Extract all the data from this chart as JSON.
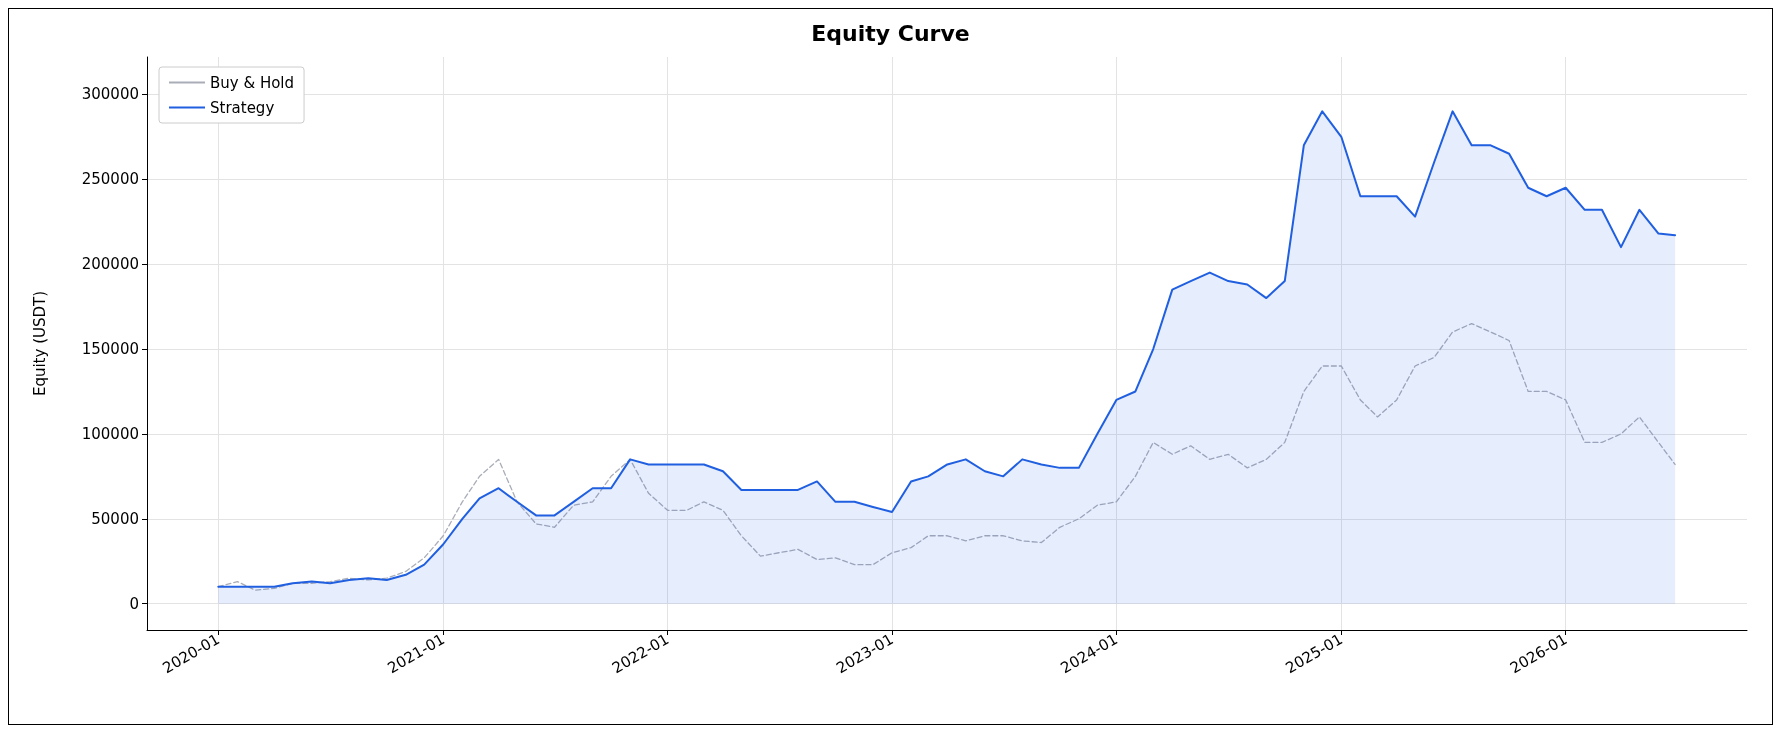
{
  "chart_data": {
    "type": "line",
    "title": "Equity Curve",
    "ylabel": "Equity (USDT)",
    "xlim": [
      "2019-09-07",
      "2026-10-23"
    ],
    "xticks": [
      "2020-01",
      "2021-01",
      "2022-01",
      "2023-01",
      "2024-01",
      "2025-01",
      "2026-01"
    ],
    "ylim": [
      -15500,
      322000
    ],
    "yticks": [
      0,
      50000,
      100000,
      150000,
      200000,
      250000,
      300000
    ],
    "grid": true,
    "legend": "top left",
    "x": [
      "2020-01",
      "2020-02",
      "2020-03",
      "2020-04",
      "2020-05",
      "2020-06",
      "2020-07",
      "2020-08",
      "2020-09",
      "2020-10",
      "2020-11",
      "2020-12",
      "2021-01",
      "2021-02",
      "2021-03",
      "2021-04",
      "2021-05",
      "2021-06",
      "2021-07",
      "2021-08",
      "2021-09",
      "2021-10",
      "2021-11",
      "2021-12",
      "2022-01",
      "2022-02",
      "2022-03",
      "2022-04",
      "2022-05",
      "2022-06",
      "2022-07",
      "2022-08",
      "2022-09",
      "2022-10",
      "2022-11",
      "2022-12",
      "2023-01",
      "2023-02",
      "2023-03",
      "2023-04",
      "2023-05",
      "2023-06",
      "2023-07",
      "2023-08",
      "2023-09",
      "2023-10",
      "2023-11",
      "2023-12",
      "2024-01",
      "2024-02",
      "2024-03",
      "2024-04",
      "2024-05",
      "2024-06",
      "2024-07",
      "2024-08",
      "2024-09",
      "2024-10",
      "2024-11",
      "2024-12",
      "2025-01",
      "2025-02",
      "2025-03",
      "2025-04",
      "2025-05",
      "2025-06",
      "2025-07",
      "2025-08",
      "2025-09",
      "2025-10",
      "2025-11",
      "2025-12",
      "2026-01",
      "2026-02",
      "2026-03",
      "2026-04",
      "2026-05",
      "2026-06",
      "2026-06-28"
    ],
    "series": [
      {
        "name": "Buy & Hold",
        "color": "#a9adb8",
        "line_style": "dashed",
        "values": [
          10000,
          13000,
          8000,
          9000,
          12000,
          12000,
          13000,
          15000,
          14000,
          15000,
          19000,
          27000,
          40000,
          60000,
          75000,
          85000,
          60000,
          47000,
          45000,
          58000,
          60000,
          75000,
          85000,
          65000,
          55000,
          55000,
          60000,
          55000,
          40000,
          28000,
          30000,
          32000,
          26000,
          27000,
          23000,
          23000,
          30000,
          33000,
          40000,
          40000,
          37000,
          40000,
          40000,
          37000,
          36000,
          45000,
          50000,
          58000,
          60000,
          75000,
          95000,
          88000,
          93000,
          85000,
          88000,
          80000,
          85000,
          95000,
          125000,
          140000,
          140000,
          120000,
          110000,
          120000,
          140000,
          145000,
          160000,
          165000,
          160000,
          155000,
          125000,
          125000,
          120000,
          95000,
          95000,
          100000,
          110000,
          95000,
          82000
        ]
      },
      {
        "name": "Strategy",
        "type": "area",
        "color": "#1f5fe0",
        "line_style": "solid",
        "values": [
          10000,
          10000,
          10000,
          10000,
          12000,
          13000,
          12000,
          14000,
          15000,
          14000,
          17000,
          23000,
          35000,
          50000,
          62000,
          68000,
          60000,
          52000,
          52000,
          60000,
          68000,
          68000,
          85000,
          82000,
          82000,
          82000,
          82000,
          78000,
          67000,
          67000,
          67000,
          67000,
          72000,
          60000,
          60000,
          57000,
          54000,
          72000,
          75000,
          82000,
          85000,
          78000,
          75000,
          85000,
          82000,
          80000,
          80000,
          100000,
          120000,
          125000,
          150000,
          185000,
          190000,
          195000,
          190000,
          188000,
          180000,
          190000,
          270000,
          290000,
          275000,
          240000,
          240000,
          240000,
          228000,
          260000,
          290000,
          270000,
          270000,
          265000,
          245000,
          240000,
          245000,
          232000,
          232000,
          210000,
          232000,
          218000,
          217000
        ]
      }
    ]
  }
}
